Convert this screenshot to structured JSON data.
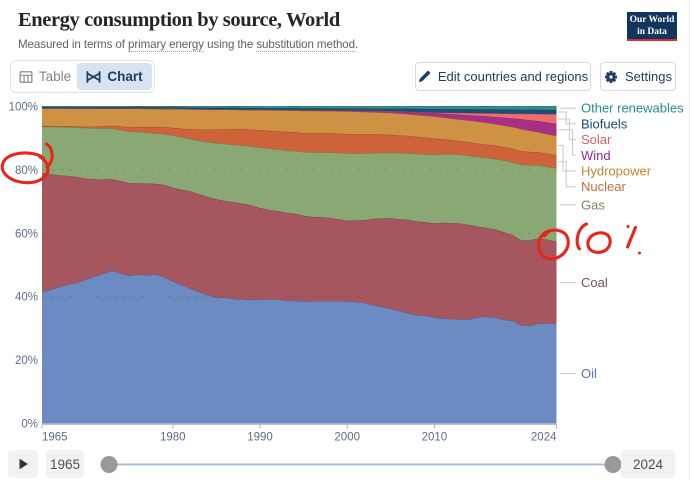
{
  "header": {
    "title": "Energy consumption by source, World",
    "subtitle_prefix": "Measured in terms of ",
    "subtitle_link1": "primary energy",
    "subtitle_mid": " using the ",
    "subtitle_link2": "substitution method",
    "subtitle_suffix": ".",
    "logo": {
      "line1": "Our World",
      "line2": "in Data",
      "bg": "#12355f",
      "accent": "#e8262d"
    }
  },
  "toolbar": {
    "tab_table": "Table",
    "tab_chart": "Chart",
    "edit_button": "Edit countries and regions",
    "settings_button": "Settings",
    "accent_color": "#1d3d63"
  },
  "chart_data": {
    "type": "area",
    "stacking": "percent",
    "title": "Energy consumption by source, World",
    "xlabel": "",
    "ylabel": "",
    "ylim": [
      0,
      100
    ],
    "grid": "dashed",
    "legend_position": "right",
    "x": [
      1965,
      1966,
      1967,
      1968,
      1969,
      1970,
      1971,
      1972,
      1973,
      1974,
      1975,
      1976,
      1977,
      1978,
      1979,
      1980,
      1981,
      1982,
      1983,
      1984,
      1985,
      1986,
      1987,
      1988,
      1989,
      1990,
      1991,
      1992,
      1993,
      1994,
      1995,
      1996,
      1997,
      1998,
      1999,
      2000,
      2001,
      2002,
      2003,
      2004,
      2005,
      2006,
      2007,
      2008,
      2009,
      2010,
      2011,
      2012,
      2013,
      2014,
      2015,
      2016,
      2017,
      2018,
      2019,
      2020,
      2021,
      2022,
      2023,
      2024
    ],
    "xticks": [
      1965,
      1980,
      1990,
      2000,
      2010,
      2024
    ],
    "yticks": [
      0,
      20,
      40,
      60,
      80,
      100
    ],
    "ytick_suffix": "%",
    "series": [
      {
        "name": "Oil",
        "key": "oil",
        "color": "#6d8bc3",
        "label_color": "#5577b4",
        "values": [
          41.4,
          42.13,
          43.06,
          43.78,
          44.37,
          45.4,
          46.27,
          47.18,
          48.23,
          47.36,
          46.53,
          47.01,
          46.78,
          47.08,
          46.21,
          44.81,
          43.72,
          42.6,
          41.47,
          40.54,
          39.59,
          39.82,
          39.28,
          39.17,
          38.98,
          39.06,
          39.16,
          39.21,
          38.73,
          38.76,
          38.54,
          38.59,
          38.6,
          38.61,
          38.69,
          38.4,
          38.32,
          38.01,
          37.25,
          36.8,
          36.2,
          35.53,
          34.77,
          34.16,
          34.03,
          33.4,
          33.09,
          33.0,
          32.81,
          32.91,
          33.49,
          33.76,
          33.4,
          32.73,
          32.4,
          30.89,
          30.88,
          31.5,
          31.55,
          31.47
        ]
      },
      {
        "name": "Coal",
        "key": "coal",
        "color": "#a5565e",
        "label_color": "#7d5054",
        "values": [
          37.7,
          36.55,
          35.21,
          34.34,
          33.39,
          31.89,
          30.75,
          29.8,
          28.88,
          29.15,
          29.33,
          28.8,
          28.93,
          28.52,
          29.05,
          29.61,
          30.01,
          30.64,
          30.88,
          30.94,
          31.12,
          30.41,
          30.51,
          30.19,
          29.85,
          28.91,
          28.22,
          27.84,
          27.75,
          27.38,
          26.98,
          26.59,
          26.45,
          26.22,
          25.73,
          25.58,
          25.74,
          26.17,
          27.29,
          27.91,
          28.57,
          28.92,
          29.46,
          29.55,
          29.51,
          29.71,
          30.24,
          30.26,
          30.25,
          29.75,
          28.65,
          27.9,
          27.79,
          27.58,
          26.97,
          26.82,
          26.96,
          26.94,
          26.43,
          25.93
        ]
      },
      {
        "name": "Gas",
        "key": "gas",
        "color": "#8aa873",
        "label_color": "#77865f",
        "values": [
          14.6,
          14.95,
          15.27,
          15.36,
          15.6,
          15.96,
          16.12,
          16.12,
          15.99,
          16.09,
          16.23,
          16.17,
          16.08,
          15.97,
          16.04,
          16.47,
          16.59,
          16.57,
          16.88,
          17.33,
          17.76,
          18.01,
          18.19,
          18.37,
          18.63,
          19.11,
          19.37,
          19.43,
          19.64,
          19.79,
          20.13,
          20.4,
          20.51,
          20.67,
          20.93,
          21.21,
          21.17,
          21.05,
          20.8,
          20.69,
          20.67,
          20.88,
          21.02,
          21.34,
          21.4,
          21.64,
          21.68,
          21.79,
          21.73,
          21.8,
          21.92,
          22.11,
          22.23,
          22.64,
          23.03,
          23.93,
          23.67,
          23.06,
          23.0,
          23.16
        ]
      },
      {
        "name": "Nuclear",
        "key": "nuclear",
        "color": "#ce6238",
        "label_color": "#c96a3d",
        "values": [
          0.2,
          0.22,
          0.26,
          0.33,
          0.37,
          0.39,
          0.52,
          0.69,
          0.85,
          1.13,
          1.38,
          1.54,
          1.74,
          1.96,
          2.14,
          2.35,
          2.66,
          3.02,
          3.49,
          3.91,
          4.27,
          4.53,
          4.83,
          5.07,
          5.26,
          5.48,
          5.6,
          5.74,
          5.9,
          5.93,
          5.97,
          6.0,
          6.04,
          6.08,
          6.11,
          6.13,
          6.06,
          6.05,
          5.93,
          5.77,
          5.62,
          5.52,
          5.46,
          5.41,
          5.26,
          5.14,
          4.63,
          4.29,
          4.29,
          4.26,
          4.23,
          4.22,
          4.24,
          4.23,
          4.25,
          4.29,
          4.18,
          4.01,
          4.07,
          4.06
        ]
      },
      {
        "name": "Hydropower",
        "key": "hydropower",
        "color": "#cf9245",
        "label_color": "#bf862b",
        "values": [
          5.5,
          5.55,
          5.59,
          5.58,
          5.65,
          5.75,
          5.7,
          5.56,
          5.39,
          5.61,
          5.86,
          5.82,
          5.78,
          5.77,
          5.84,
          6.03,
          6.22,
          6.32,
          6.39,
          6.34,
          6.28,
          6.24,
          6.18,
          6.16,
          6.21,
          6.35,
          6.51,
          6.59,
          6.73,
          6.87,
          7.05,
          7.05,
          6.98,
          6.96,
          7.05,
          7.15,
          7.09,
          7.0,
          6.93,
          6.92,
          6.92,
          6.91,
          6.85,
          6.86,
          6.88,
          6.94,
          6.88,
          6.84,
          6.8,
          6.86,
          6.94,
          6.89,
          6.8,
          6.8,
          6.87,
          6.94,
          6.61,
          6.33,
          6.21,
          6.14
        ]
      },
      {
        "name": "Wind",
        "key": "wind",
        "color": "#a82e86",
        "label_color": "#8e2f8f",
        "values": [
          0.0,
          0.0,
          0.0,
          0.0,
          0.0,
          0.0,
          0.0,
          0.0,
          0.0,
          0.0,
          0.0,
          0.01,
          0.01,
          0.01,
          0.01,
          0.01,
          0.01,
          0.01,
          0.01,
          0.01,
          0.01,
          0.02,
          0.03,
          0.03,
          0.04,
          0.05,
          0.06,
          0.08,
          0.09,
          0.11,
          0.12,
          0.15,
          0.18,
          0.21,
          0.24,
          0.27,
          0.31,
          0.35,
          0.4,
          0.47,
          0.54,
          0.63,
          0.71,
          0.79,
          0.91,
          1.04,
          1.19,
          1.35,
          1.51,
          1.68,
          1.84,
          2.02,
          2.19,
          2.44,
          2.68,
          3.09,
          3.38,
          3.49,
          3.67,
          3.76
        ]
      },
      {
        "name": "Solar",
        "key": "solar",
        "color": "#ee6d6e",
        "label_color": "#dd5f65",
        "values": [
          0.0,
          0.0,
          0.0,
          0.0,
          0.0,
          0.0,
          0.0,
          0.0,
          0.0,
          0.01,
          0.01,
          0.01,
          0.01,
          0.01,
          0.01,
          0.01,
          0.01,
          0.01,
          0.01,
          0.01,
          0.01,
          0.01,
          0.01,
          0.01,
          0.01,
          0.01,
          0.01,
          0.02,
          0.02,
          0.02,
          0.02,
          0.02,
          0.02,
          0.02,
          0.02,
          0.02,
          0.03,
          0.04,
          0.04,
          0.05,
          0.06,
          0.08,
          0.1,
          0.12,
          0.16,
          0.2,
          0.32,
          0.45,
          0.55,
          0.65,
          0.8,
          0.95,
          1.15,
          1.34,
          1.54,
          1.74,
          1.99,
          2.29,
          2.68,
          3.07
        ]
      },
      {
        "name": "Biofuels",
        "key": "biofuels",
        "color": "#1d4d7a",
        "label_color": "#18496f",
        "values": [
          0.4,
          0.4,
          0.4,
          0.4,
          0.39,
          0.38,
          0.39,
          0.41,
          0.41,
          0.41,
          0.4,
          0.4,
          0.42,
          0.43,
          0.42,
          0.43,
          0.45,
          0.49,
          0.52,
          0.53,
          0.54,
          0.55,
          0.56,
          0.56,
          0.54,
          0.53,
          0.54,
          0.56,
          0.58,
          0.58,
          0.59,
          0.6,
          0.61,
          0.61,
          0.6,
          0.59,
          0.62,
          0.66,
          0.68,
          0.7,
          0.72,
          0.82,
          0.91,
          1.0,
          1.07,
          1.14,
          1.16,
          1.2,
          1.21,
          1.22,
          1.23,
          1.25,
          1.27,
          1.28,
          1.28,
          1.29,
          1.31,
          1.33,
          1.33,
          1.34
        ]
      },
      {
        "name": "Other renewables",
        "key": "other_renewables",
        "color": "#2e8f88",
        "label_color": "#2a8a8a",
        "values": [
          0.2,
          0.2,
          0.21,
          0.21,
          0.22,
          0.23,
          0.24,
          0.24,
          0.24,
          0.25,
          0.25,
          0.26,
          0.26,
          0.26,
          0.28,
          0.3,
          0.32,
          0.34,
          0.36,
          0.39,
          0.41,
          0.42,
          0.43,
          0.45,
          0.47,
          0.49,
          0.51,
          0.53,
          0.55,
          0.58,
          0.61,
          0.61,
          0.61,
          0.62,
          0.64,
          0.65,
          0.65,
          0.66,
          0.67,
          0.68,
          0.7,
          0.71,
          0.73,
          0.76,
          0.78,
          0.8,
          0.81,
          0.83,
          0.85,
          0.88,
          0.9,
          0.92,
          0.93,
          0.96,
          0.98,
          1.01,
          1.02,
          1.04,
          1.06,
          1.09
        ]
      }
    ]
  },
  "annotations": {
    "color": "#e8251a",
    "items": [
      {
        "id": "circle-80-percent",
        "desc": "hand-drawn red circle around the 80% y-axis label"
      },
      {
        "id": "circle-coal-gas-boundary",
        "desc": "hand-drawn red circle on the coal/gas boundary at the right edge"
      },
      {
        "id": "note-60-percent",
        "desc": "handwritten red '60%' next to the circled boundary"
      }
    ]
  },
  "timeline": {
    "start_year": "1965",
    "end_year": "2024",
    "play_icon": "play-icon"
  }
}
